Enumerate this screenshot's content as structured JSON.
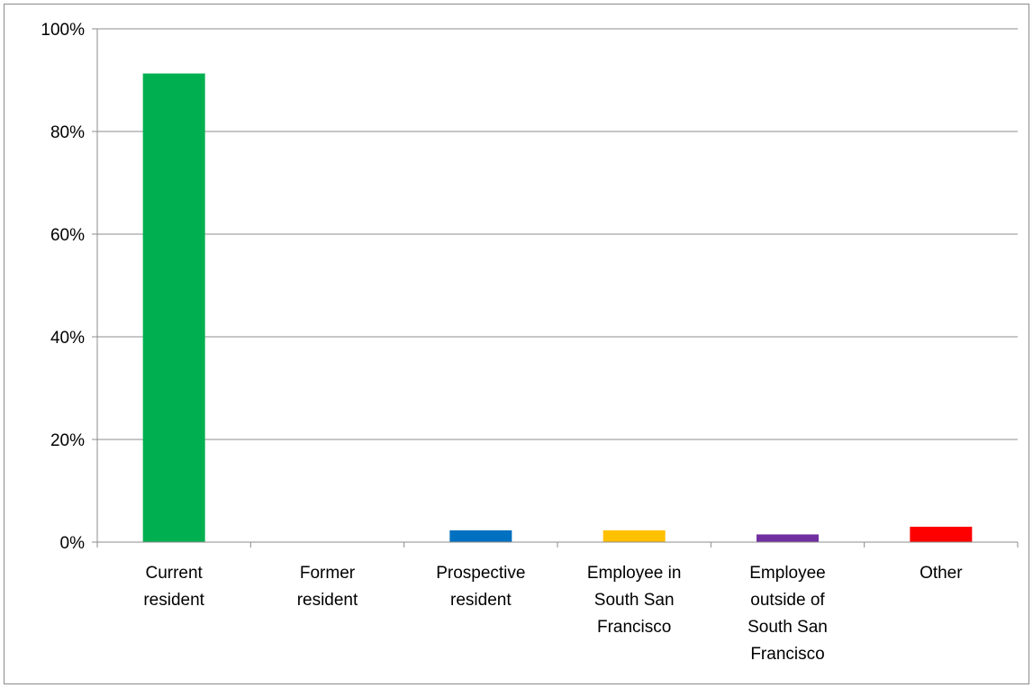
{
  "chart_data": {
    "type": "bar",
    "title": "",
    "xlabel": "",
    "ylabel": "",
    "categories": [
      [
        "Current",
        "resident"
      ],
      [
        "Former",
        "resident"
      ],
      [
        "Prospective",
        "resident"
      ],
      [
        "Employee in",
        "South San",
        "Francisco"
      ],
      [
        "Employee",
        "outside of",
        "South San",
        "Francisco"
      ],
      [
        "Other"
      ]
    ],
    "values": [
      91.3,
      0,
      2.3,
      2.3,
      1.5,
      3.0
    ],
    "colors": [
      "#00b050",
      "#7f7f7f",
      "#0070c0",
      "#ffc000",
      "#7030a0",
      "#ff0000"
    ],
    "ylim": [
      0,
      100
    ],
    "yticks": [
      0,
      20,
      40,
      60,
      80,
      100
    ],
    "ytick_labels": [
      "0%",
      "20%",
      "40%",
      "60%",
      "80%",
      "100%"
    ],
    "grid": true,
    "legend": "none"
  }
}
